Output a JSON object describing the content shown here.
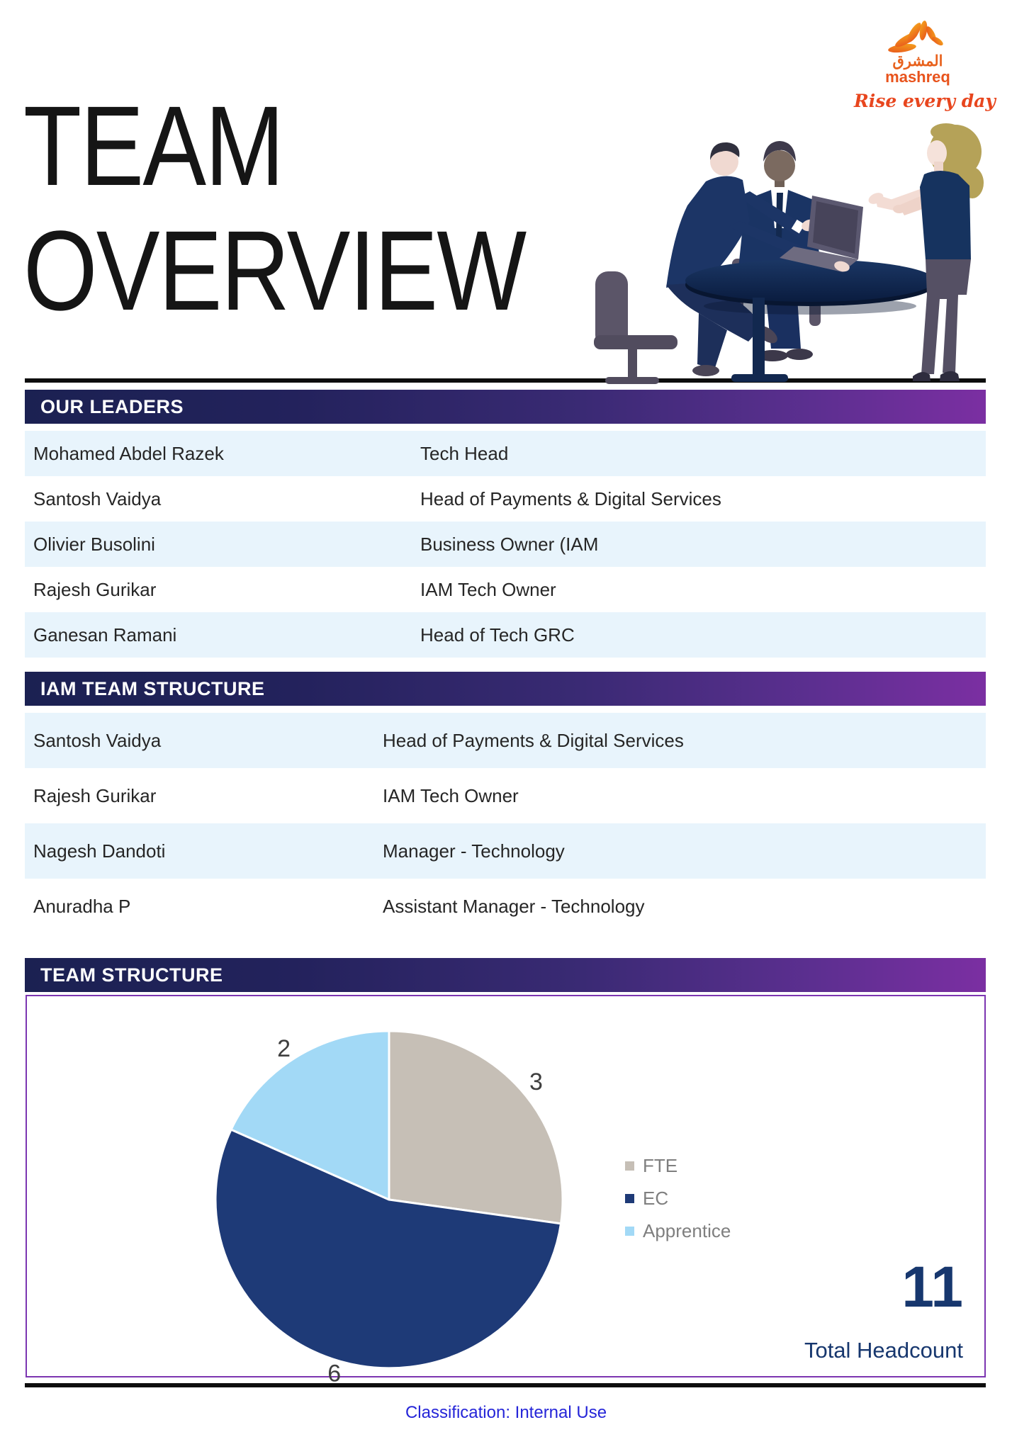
{
  "page": {
    "title_line1": "TEAM",
    "title_line2": "OVERVIEW",
    "footer": "Classification: Internal Use"
  },
  "logo": {
    "arabic": "المشرق",
    "name": "mashreq",
    "tagline": "Rise every day"
  },
  "sections": {
    "leaders": {
      "header": "OUR LEADERS",
      "rows": [
        {
          "name": "Mohamed Abdel Razek",
          "role": "Tech Head"
        },
        {
          "name": "Santosh Vaidya",
          "role": "Head of Payments & Digital Services"
        },
        {
          "name": "Olivier Busolini",
          "role": "Business Owner (IAM"
        },
        {
          "name": "Rajesh Gurikar",
          "role": "IAM Tech Owner"
        },
        {
          "name": "Ganesan Ramani",
          "role": "Head of Tech GRC"
        }
      ]
    },
    "iam_team": {
      "header": "IAM TEAM STRUCTURE",
      "rows": [
        {
          "name": "Santosh Vaidya",
          "role": "Head of Payments & Digital Services"
        },
        {
          "name": "Rajesh Gurikar",
          "role": "IAM Tech Owner"
        },
        {
          "name": "Nagesh Dandoti",
          "role": "Manager - Technology"
        },
        {
          "name": "Anuradha P",
          "role": "Assistant Manager - Technology"
        }
      ]
    },
    "team_structure": {
      "header": "TEAM STRUCTURE",
      "total_value": "11",
      "total_label": "Total Headcount"
    }
  },
  "chart_data": {
    "type": "pie",
    "title": "Team Structure",
    "categories": [
      "FTE",
      "EC",
      "Apprentice"
    ],
    "values": [
      3,
      6,
      2
    ],
    "data_labels": [
      "3",
      "6",
      "2"
    ],
    "colors": {
      "FTE": "#c6bfb6",
      "EC": "#1e3a77",
      "Apprentice": "#a2d9f6"
    },
    "legend_position": "right",
    "start_angle_deg": 0,
    "direction": "clockwise",
    "total": 11
  },
  "theme": {
    "band_gradient_start": "#1b2152",
    "band_gradient_end": "#7b2fa2",
    "row_alt_bg": "#e8f4fc",
    "navy_text": "#17376e",
    "footer_blue": "#2525d8",
    "label_gray": "#3f3f3f"
  }
}
